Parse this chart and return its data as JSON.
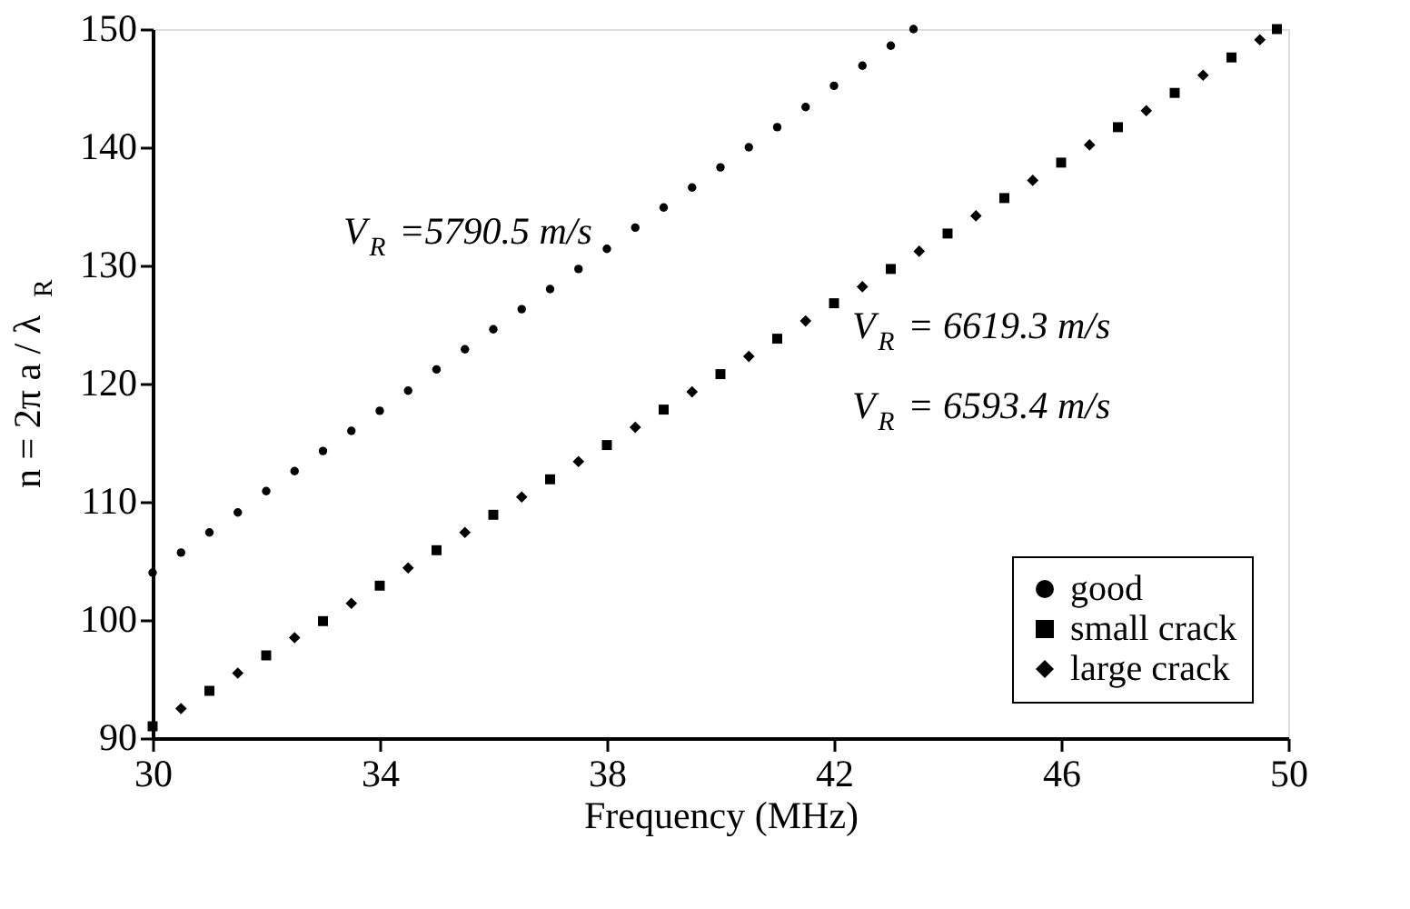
{
  "chart_data": {
    "type": "scatter",
    "xlabel": "Frequency (MHz)",
    "ylabel": "n = 2π a / λ$_{R}$",
    "xlim": [
      30,
      50
    ],
    "xticks": [
      30,
      34,
      38,
      42,
      46,
      50
    ],
    "ylim": [
      90,
      150
    ],
    "yticks": [
      90,
      100,
      110,
      120,
      130,
      140,
      150
    ],
    "grid": false,
    "legend": "bottom right",
    "series": [
      {
        "name": "good",
        "color": "#000000",
        "marker": "circle",
        "x": [
          30,
          30.5,
          31,
          31.5,
          32,
          32.5,
          33,
          33.5,
          34,
          34.5,
          35,
          35.5,
          36,
          36.5,
          37,
          37.5,
          38,
          38.5,
          39,
          39.5,
          40,
          40.5,
          41,
          41.5,
          42,
          42.5,
          43,
          43.4
        ],
        "values": [
          104.0,
          105.7,
          107.4,
          109.1,
          110.9,
          112.6,
          114.3,
          116.0,
          117.7,
          119.4,
          121.2,
          122.9,
          124.6,
          126.3,
          128.0,
          129.7,
          131.4,
          133.2,
          134.9,
          136.6,
          138.3,
          140.0,
          141.7,
          143.4,
          145.2,
          146.9,
          148.6,
          150.0
        ]
      },
      {
        "name": "small crack",
        "color": "#000000",
        "marker": "square",
        "x": [
          30,
          31,
          32,
          33,
          34,
          35,
          36,
          37,
          38,
          39,
          40,
          41,
          42,
          43,
          44,
          45,
          46,
          47,
          48,
          49,
          49.8
        ],
        "values": [
          91.0,
          94.0,
          97.0,
          99.9,
          102.9,
          105.9,
          108.9,
          111.9,
          114.8,
          117.8,
          120.8,
          123.8,
          126.8,
          129.7,
          132.7,
          135.7,
          138.7,
          141.7,
          144.6,
          147.6,
          150.0
        ]
      },
      {
        "name": "large crack",
        "color": "#000000",
        "marker": "diamond",
        "x": [
          30.5,
          31.5,
          32.5,
          33.5,
          34.5,
          35.5,
          36.5,
          37.5,
          38.5,
          39.5,
          40.5,
          41.5,
          42.5,
          43.5,
          44.5,
          45.5,
          46.5,
          47.5,
          48.5,
          49.5
        ],
        "values": [
          92.5,
          95.5,
          98.5,
          101.4,
          104.4,
          107.4,
          110.4,
          113.4,
          116.3,
          119.3,
          122.3,
          125.3,
          128.2,
          131.2,
          134.2,
          137.2,
          140.2,
          143.1,
          146.1,
          149.1
        ]
      }
    ],
    "annotations": [
      "V$_{R}$ =5790.5 m/s",
      "V$_{R}$ = 6619.3 m/s",
      "V$_{R}$ = 6593.4 m/s"
    ]
  }
}
